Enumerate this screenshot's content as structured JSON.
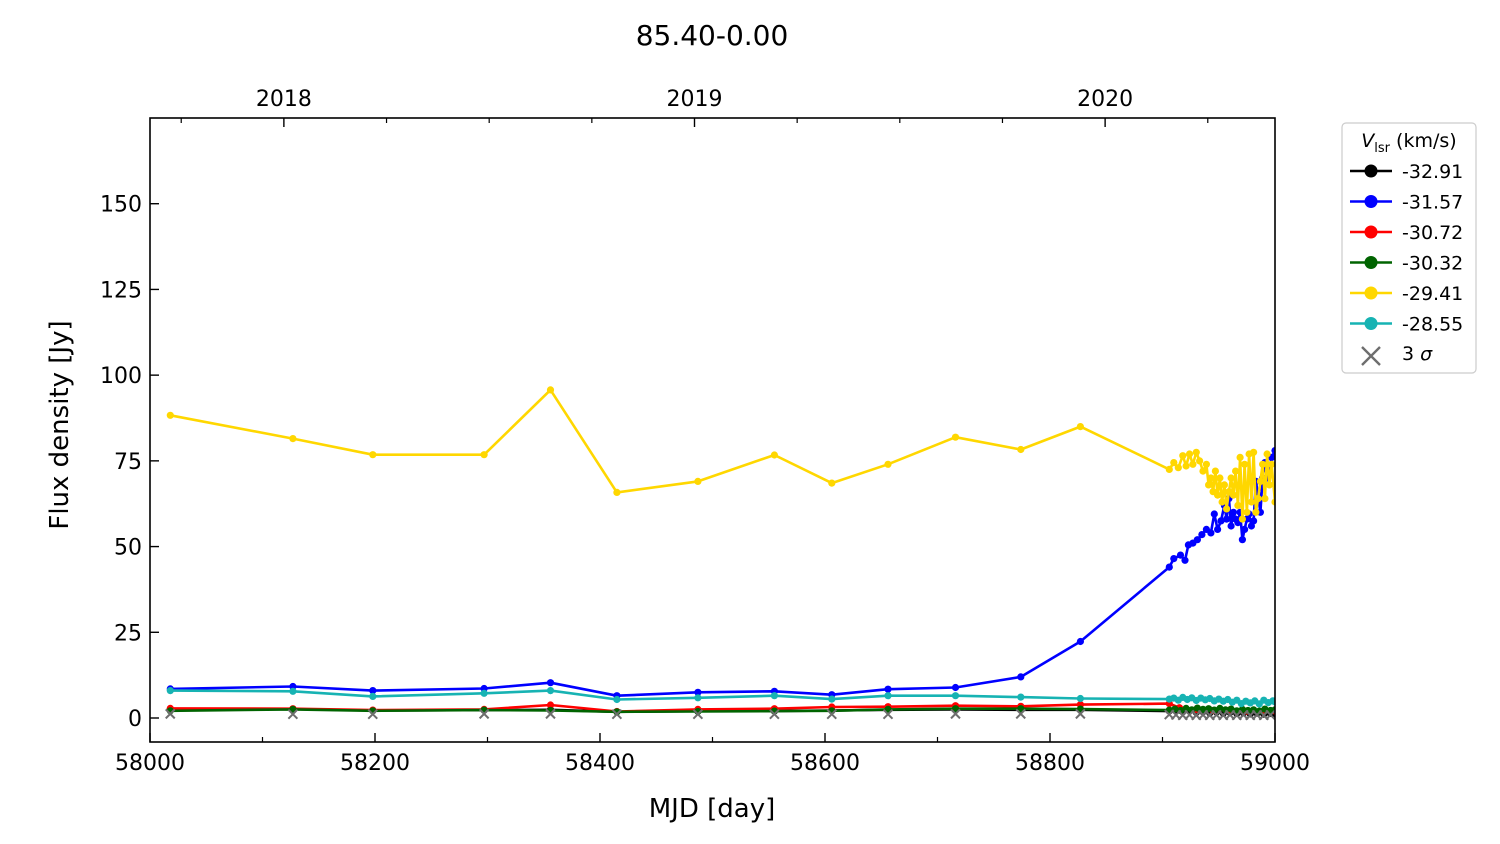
{
  "chart_data": {
    "type": "line",
    "title": "85.40-0.00",
    "xlabel": "MJD [day]",
    "ylabel": "Flux density [Jy]",
    "xlim": [
      58000,
      59000
    ],
    "ylim": [
      -7,
      175
    ],
    "x_ticks": [
      58000,
      58200,
      58400,
      58600,
      58800,
      59000
    ],
    "y_ticks": [
      0,
      25,
      50,
      75,
      100,
      125,
      150
    ],
    "top_axis_ticks": [
      {
        "label": "2018",
        "mjd": 58119
      },
      {
        "label": "2019",
        "mjd": 58484
      },
      {
        "label": "2020",
        "mjd": 58849
      }
    ],
    "legend": {
      "title_symbol": "V",
      "title_subscript": "lsr",
      "title_unit": "(km/s)",
      "placement": "outside-right",
      "sigma_label": "3 σ"
    },
    "grid": false,
    "series": [
      {
        "name": "-32.91",
        "color": "#000000",
        "points": [
          [
            58018,
            2.5
          ],
          [
            58127,
            2.6
          ],
          [
            58198,
            2.2
          ],
          [
            58297,
            2.3
          ],
          [
            58356,
            2.4
          ],
          [
            58415,
            1.8
          ],
          [
            58487,
            2.0
          ],
          [
            58555,
            2.0
          ],
          [
            58606,
            2.2
          ],
          [
            58656,
            2.4
          ],
          [
            58716,
            2.5
          ],
          [
            58774,
            2.4
          ],
          [
            58827,
            2.4
          ],
          [
            58906,
            2.0
          ],
          [
            58912,
            2.2
          ],
          [
            58918,
            1.8
          ],
          [
            58924,
            2.0
          ],
          [
            58930,
            1.6
          ],
          [
            58936,
            1.8
          ],
          [
            58942,
            1.5
          ],
          [
            58948,
            1.7
          ],
          [
            58954,
            1.4
          ],
          [
            58960,
            1.6
          ],
          [
            58966,
            1.3
          ],
          [
            58972,
            1.5
          ],
          [
            58978,
            1.2
          ],
          [
            58984,
            1.4
          ],
          [
            58990,
            1.1
          ],
          [
            58996,
            1.3
          ],
          [
            59000,
            1.2
          ]
        ]
      },
      {
        "name": "-31.57",
        "color": "#0000ff",
        "points": [
          [
            58018,
            8.5
          ],
          [
            58127,
            9.2
          ],
          [
            58198,
            8.0
          ],
          [
            58297,
            8.6
          ],
          [
            58356,
            10.3
          ],
          [
            58415,
            6.5
          ],
          [
            58487,
            7.5
          ],
          [
            58555,
            7.8
          ],
          [
            58606,
            6.8
          ],
          [
            58656,
            8.4
          ],
          [
            58716,
            8.9
          ],
          [
            58774,
            12.0
          ],
          [
            58827,
            22.3
          ],
          [
            58906,
            44.0
          ],
          [
            58910,
            46.5
          ],
          [
            58916,
            47.5
          ],
          [
            58920,
            46.0
          ],
          [
            58923,
            50.5
          ],
          [
            58927,
            51.0
          ],
          [
            58931,
            52.0
          ],
          [
            58935,
            53.5
          ],
          [
            58939,
            55.0
          ],
          [
            58943,
            54.0
          ],
          [
            58946,
            59.5
          ],
          [
            58949,
            55.0
          ],
          [
            58952,
            57.5
          ],
          [
            58955,
            62.0
          ],
          [
            58957,
            58.0
          ],
          [
            58959,
            64.0
          ],
          [
            58961,
            56.0
          ],
          [
            58963,
            60.0
          ],
          [
            58965,
            58.0
          ],
          [
            58967,
            57.0
          ],
          [
            58969,
            60.0
          ],
          [
            58971,
            52.0
          ],
          [
            58973,
            55.0
          ],
          [
            58975,
            58.0
          ],
          [
            58977,
            59.5
          ],
          [
            58979,
            56.0
          ],
          [
            58981,
            57.5
          ],
          [
            58983,
            69.0
          ],
          [
            58985,
            65.0
          ],
          [
            58987,
            60.0
          ],
          [
            58989,
            70.0
          ],
          [
            58991,
            74.5
          ],
          [
            58993,
            70.0
          ],
          [
            58995,
            72.0
          ],
          [
            58997,
            76.0
          ],
          [
            59000,
            78.0
          ]
        ]
      },
      {
        "name": "-30.72",
        "color": "#ff0000",
        "points": [
          [
            58018,
            2.8
          ],
          [
            58127,
            2.7
          ],
          [
            58198,
            2.3
          ],
          [
            58297,
            2.5
          ],
          [
            58356,
            3.8
          ],
          [
            58415,
            1.9
          ],
          [
            58487,
            2.5
          ],
          [
            58555,
            2.7
          ],
          [
            58606,
            3.2
          ],
          [
            58656,
            3.3
          ],
          [
            58716,
            3.6
          ],
          [
            58774,
            3.4
          ],
          [
            58827,
            3.9
          ],
          [
            58906,
            4.2
          ],
          [
            58915,
            3.0
          ],
          [
            58930,
            2.5
          ],
          [
            58945,
            2.2
          ],
          [
            58960,
            2.4
          ],
          [
            58975,
            2.0
          ],
          [
            58990,
            2.2
          ],
          [
            59000,
            2.0
          ]
        ]
      },
      {
        "name": "-30.32",
        "color": "#006400",
        "points": [
          [
            58018,
            2.1
          ],
          [
            58127,
            2.5
          ],
          [
            58198,
            2.1
          ],
          [
            58297,
            2.3
          ],
          [
            58356,
            2.2
          ],
          [
            58415,
            1.8
          ],
          [
            58487,
            1.9
          ],
          [
            58555,
            2.0
          ],
          [
            58606,
            2.1
          ],
          [
            58656,
            2.5
          ],
          [
            58716,
            2.7
          ],
          [
            58774,
            2.7
          ],
          [
            58827,
            2.6
          ],
          [
            58906,
            2.3
          ],
          [
            58911,
            2.6
          ],
          [
            58916,
            2.2
          ],
          [
            58921,
            2.8
          ],
          [
            58926,
            2.4
          ],
          [
            58931,
            2.9
          ],
          [
            58936,
            2.5
          ],
          [
            58941,
            2.7
          ],
          [
            58946,
            2.3
          ],
          [
            58951,
            2.8
          ],
          [
            58956,
            2.4
          ],
          [
            58961,
            2.6
          ],
          [
            58966,
            2.1
          ],
          [
            58971,
            2.5
          ],
          [
            58976,
            2.2
          ],
          [
            58981,
            2.4
          ],
          [
            58986,
            2.0
          ],
          [
            58991,
            2.6
          ],
          [
            58996,
            2.2
          ],
          [
            59000,
            2.4
          ]
        ]
      },
      {
        "name": "-29.41",
        "color": "#ffd700",
        "points": [
          [
            58018,
            88.3
          ],
          [
            58127,
            81.5
          ],
          [
            58198,
            76.8
          ],
          [
            58297,
            76.8
          ],
          [
            58356,
            95.7
          ],
          [
            58415,
            65.8
          ],
          [
            58487,
            69.0
          ],
          [
            58555,
            76.7
          ],
          [
            58606,
            68.5
          ],
          [
            58656,
            74.0
          ],
          [
            58716,
            81.9
          ],
          [
            58774,
            78.3
          ],
          [
            58827,
            85.0
          ],
          [
            58906,
            72.5
          ],
          [
            58910,
            74.5
          ],
          [
            58914,
            73.0
          ],
          [
            58918,
            76.5
          ],
          [
            58921,
            73.5
          ],
          [
            58924,
            77.0
          ],
          [
            58927,
            74.0
          ],
          [
            58930,
            77.5
          ],
          [
            58933,
            75.0
          ],
          [
            58936,
            72.0
          ],
          [
            58939,
            74.0
          ],
          [
            58941,
            68.0
          ],
          [
            58943,
            70.0
          ],
          [
            58945,
            66.0
          ],
          [
            58947,
            72.0
          ],
          [
            58949,
            65.0
          ],
          [
            58951,
            70.0
          ],
          [
            58953,
            63.0
          ],
          [
            58955,
            68.0
          ],
          [
            58957,
            61.0
          ],
          [
            58959,
            66.0
          ],
          [
            58961,
            70.0
          ],
          [
            58963,
            65.0
          ],
          [
            58965,
            72.0
          ],
          [
            58967,
            62.0
          ],
          [
            58969,
            76.0
          ],
          [
            58971,
            58.0
          ],
          [
            58973,
            74.0
          ],
          [
            58975,
            60.0
          ],
          [
            58977,
            77.0
          ],
          [
            58979,
            63.0
          ],
          [
            58981,
            77.5
          ],
          [
            58983,
            60.0
          ],
          [
            58985,
            64.0
          ],
          [
            58987,
            69.0
          ],
          [
            58989,
            74.0
          ],
          [
            58991,
            64.0
          ],
          [
            58993,
            77.0
          ],
          [
            58995,
            68.0
          ],
          [
            58997,
            74.0
          ],
          [
            59000,
            63.0
          ]
        ]
      },
      {
        "name": "-28.55",
        "color": "#17b3b3",
        "points": [
          [
            58018,
            8.0
          ],
          [
            58127,
            7.8
          ],
          [
            58198,
            6.3
          ],
          [
            58297,
            7.2
          ],
          [
            58356,
            8.0
          ],
          [
            58415,
            5.4
          ],
          [
            58487,
            5.9
          ],
          [
            58555,
            6.5
          ],
          [
            58606,
            5.5
          ],
          [
            58656,
            6.5
          ],
          [
            58716,
            6.5
          ],
          [
            58774,
            6.1
          ],
          [
            58827,
            5.7
          ],
          [
            58906,
            5.5
          ],
          [
            58910,
            5.8
          ],
          [
            58914,
            5.2
          ],
          [
            58918,
            6.0
          ],
          [
            58922,
            5.4
          ],
          [
            58926,
            5.9
          ],
          [
            58930,
            5.1
          ],
          [
            58934,
            5.8
          ],
          [
            58938,
            5.3
          ],
          [
            58942,
            5.7
          ],
          [
            58946,
            5.0
          ],
          [
            58950,
            5.5
          ],
          [
            58954,
            4.9
          ],
          [
            58958,
            5.4
          ],
          [
            58962,
            4.6
          ],
          [
            58966,
            5.2
          ],
          [
            58970,
            4.2
          ],
          [
            58974,
            4.9
          ],
          [
            58978,
            4.4
          ],
          [
            58982,
            5.0
          ],
          [
            58986,
            4.1
          ],
          [
            58990,
            5.2
          ],
          [
            58994,
            4.5
          ],
          [
            58998,
            5.0
          ],
          [
            59000,
            4.7
          ]
        ]
      }
    ],
    "sigma_points": [
      [
        58018,
        1.2
      ],
      [
        58127,
        1.1
      ],
      [
        58198,
        1.1
      ],
      [
        58297,
        1.2
      ],
      [
        58356,
        1.2
      ],
      [
        58415,
        1.1
      ],
      [
        58487,
        1.1
      ],
      [
        58555,
        1.1
      ],
      [
        58606,
        1.1
      ],
      [
        58656,
        1.1
      ],
      [
        58716,
        1.2
      ],
      [
        58774,
        1.2
      ],
      [
        58827,
        1.2
      ],
      [
        58906,
        1.0
      ],
      [
        58912,
        0.9
      ],
      [
        58918,
        0.8
      ],
      [
        58924,
        0.9
      ],
      [
        58930,
        0.8
      ],
      [
        58936,
        0.9
      ],
      [
        58942,
        0.8
      ],
      [
        58948,
        0.9
      ],
      [
        58954,
        0.8
      ],
      [
        58960,
        0.9
      ],
      [
        58966,
        0.8
      ],
      [
        58972,
        0.9
      ],
      [
        58978,
        0.8
      ],
      [
        58984,
        0.9
      ],
      [
        58990,
        0.8
      ],
      [
        58996,
        0.9
      ]
    ]
  }
}
